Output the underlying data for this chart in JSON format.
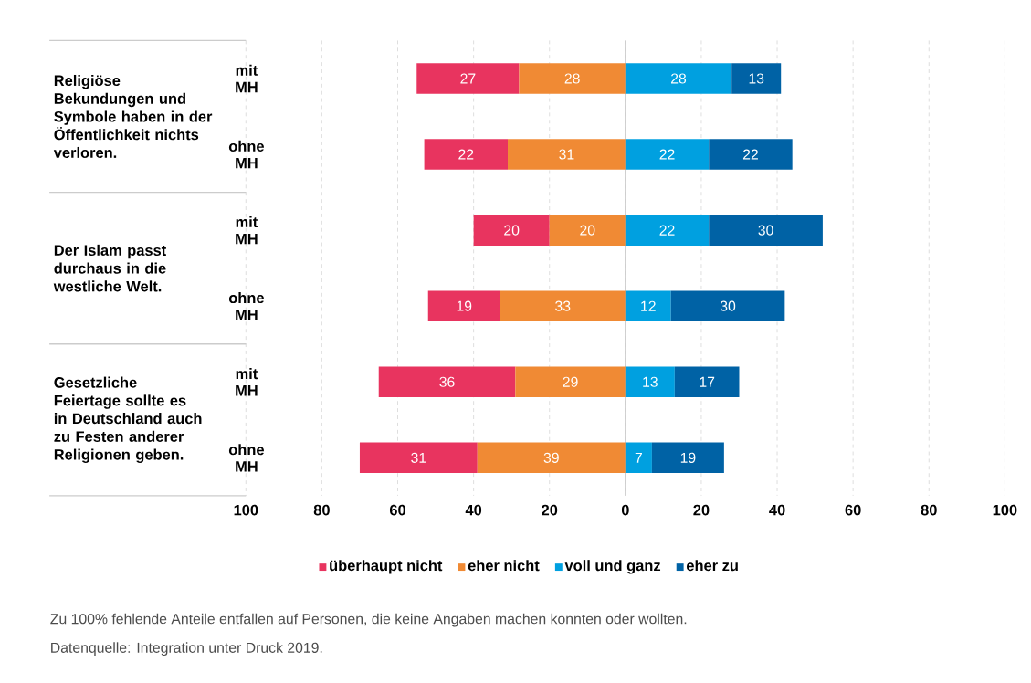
{
  "chart_data": {
    "type": "bar",
    "orientation": "horizontal",
    "categories": [
      "mit MH",
      "ohne MH",
      "mit MH",
      "ohne MH",
      "mit MH",
      "ohne MH"
    ],
    "series": [
      {
        "name": "überhaupt nicht",
        "color": "#e8345f",
        "values": [
          27,
          22,
          20,
          19,
          36,
          31
        ],
        "base": [
          -55,
          -53,
          -40,
          -52,
          -65,
          -70
        ]
      },
      {
        "name": "eher nicht",
        "color": "#f08a34",
        "values": [
          28,
          31,
          20,
          33,
          29,
          39
        ],
        "base": [
          -28,
          -31,
          -20,
          -33,
          -29,
          -39
        ]
      },
      {
        "name": "voll und ganz",
        "color": "#00a0e0",
        "values": [
          28,
          22,
          22,
          12,
          13,
          7
        ],
        "base": [
          0,
          0,
          0,
          0,
          0,
          0
        ]
      },
      {
        "name": "eher zu",
        "color": "#0062a5",
        "values": [
          13,
          22,
          30,
          30,
          17,
          19
        ],
        "base": [
          28,
          22,
          22,
          12,
          13,
          7
        ]
      }
    ],
    "data_labels": true,
    "xlim": [
      -100,
      100
    ],
    "xticks": [
      {
        "value": -100,
        "label": "100"
      },
      {
        "value": -80,
        "label": "80"
      },
      {
        "value": -60,
        "label": "60"
      },
      {
        "value": -40,
        "label": "40"
      },
      {
        "value": -20,
        "label": "20"
      },
      0,
      20,
      40,
      60,
      80,
      100
    ],
    "grid": "x",
    "legend": "bottom",
    "ref_lines": [
      {
        "axis": "x",
        "value": 0,
        "color": "#c8c8c8"
      }
    ],
    "annotations": [
      "Religiöse Bekundungen und Symbole haben in der Öffentlichkeit nichts verloren.",
      "Der Islam passt durchaus in die westliche Welt.",
      "Gesetzliche Feiertage sollte es in Deutschland auch zu Festen anderer Religionen geben.",
      "Zu 100% fehlende Anteile entfallen auf Personen, die keine Angaben machen konnten oder wollten.",
      "Datenquelle: Integration unter Druck 2019."
    ]
  }
}
